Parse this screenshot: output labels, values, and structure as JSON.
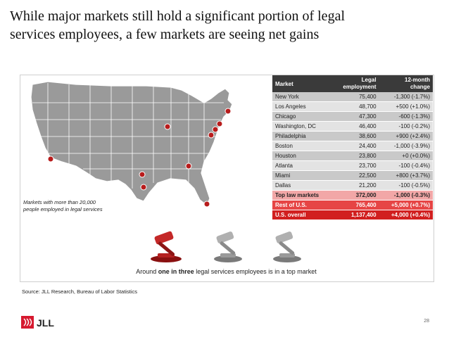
{
  "title": {
    "line1": "While major markets still hold a significant portion of legal",
    "line2": "services employees, a few markets are seeing net gains"
  },
  "map": {
    "note_line1": "Markets with more than 20,000",
    "note_line2": "people employed in legal services",
    "marker_color": "#b81c1c",
    "land_color": "#9a9a9a"
  },
  "table": {
    "headers": {
      "market": "Market",
      "employment_l1": "Legal",
      "employment_l2": "employment",
      "change_l1": "12-month",
      "change_l2": "change"
    },
    "rows": [
      {
        "market": "New York",
        "employment": "75,400",
        "change": "-1,300 (-1.7%)"
      },
      {
        "market": "Los Angeles",
        "employment": "48,700",
        "change": "+500 (+1.0%)"
      },
      {
        "market": "Chicago",
        "employment": "47,300",
        "change": "-600 (-1.3%)"
      },
      {
        "market": "Washington, DC",
        "employment": "46,400",
        "change": "-100 (-0.2%)"
      },
      {
        "market": "Philadelphia",
        "employment": "38,600",
        "change": "+900 (+2.4%)"
      },
      {
        "market": "Boston",
        "employment": "24,400",
        "change": "-1,000 (-3.9%)"
      },
      {
        "market": "Houston",
        "employment": "23,800",
        "change": "+0 (+0.0%)"
      },
      {
        "market": "Atlanta",
        "employment": "23,700",
        "change": "-100 (-0.4%)"
      },
      {
        "market": "Miami",
        "employment": "22,500",
        "change": "+800 (+3.7%)"
      },
      {
        "market": "Dallas",
        "employment": "21,200",
        "change": "-100 (-0.5%)"
      }
    ],
    "totals": [
      {
        "market": "Top law markets",
        "employment": "372,000",
        "change": "-1,000 (-0.3%)"
      },
      {
        "market": "Rest of U.S.",
        "employment": "765,400",
        "change": "+5,000 (+0.7%)"
      },
      {
        "market": "U.S. overall",
        "employment": "1,137,400",
        "change": "+4,000 (+0.4%)"
      }
    ]
  },
  "caption": {
    "pre": "Around ",
    "bold": "one in three",
    "post": " legal services employees is in a top market"
  },
  "source": "Source: JLL Research, Bureau of Labor Statistics",
  "logo_text": "JLL",
  "page_number": "28"
}
